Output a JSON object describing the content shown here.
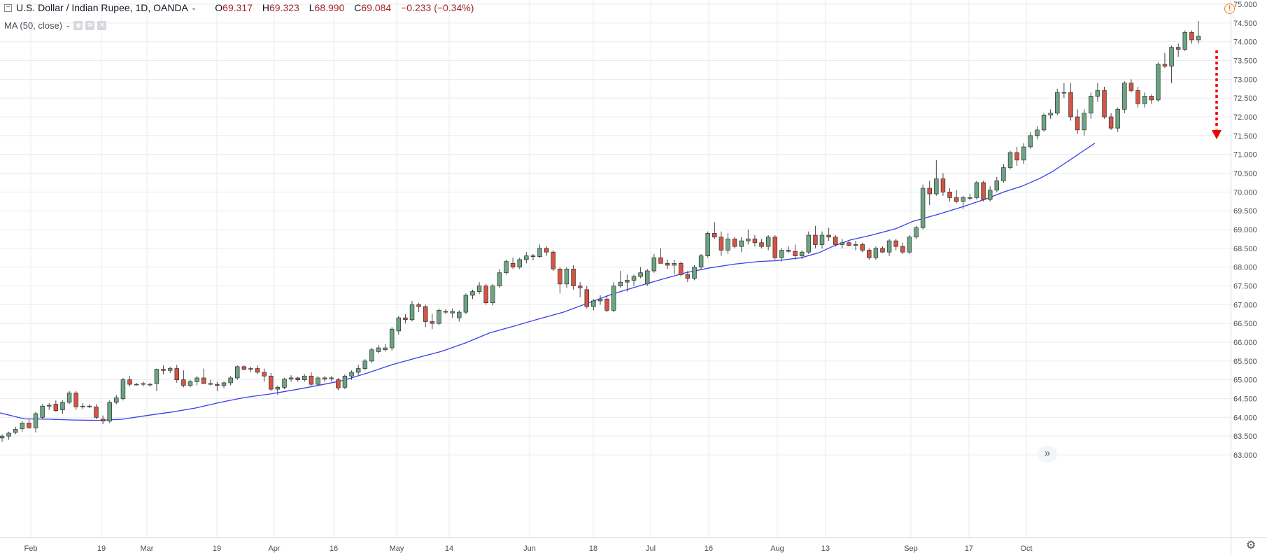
{
  "legend": {
    "symbol": "U.S. Dollar / Indian Rupee, 1D, OANDA",
    "open_label": "O",
    "open": "69.317",
    "high_label": "H",
    "high": "69.323",
    "low_label": "L",
    "low": "68.990",
    "close_label": "C",
    "close": "69.084",
    "change": "−0.233 (−0.34%)",
    "indicator": "MA (50, close)"
  },
  "icons": {
    "collapse": "collapse-square-icon",
    "dropdown": "chevron-down-icon",
    "eye": "eye-icon",
    "settings": "gear-icon",
    "close": "close-icon",
    "warning": "warning-circle-icon",
    "scroll": "double-chevron-right-icon",
    "chart_settings": "gear-icon"
  },
  "colors": {
    "up": "#6ba583",
    "down": "#d75442",
    "ma": "#3a3ee8",
    "arrow": "#f20000",
    "grid": "#e9ebef"
  },
  "chart_data": {
    "type": "candlestick",
    "title": "U.S. Dollar / Indian Rupee, 1D, OANDA",
    "y_ticks": [
      "75.000",
      "74.500",
      "74.000",
      "73.500",
      "73.000",
      "72.500",
      "72.000",
      "71.500",
      "71.000",
      "70.500",
      "70.000",
      "69.500",
      "69.000",
      "68.500",
      "68.000",
      "67.500",
      "67.000",
      "66.500",
      "66.000",
      "65.500",
      "65.000",
      "64.500",
      "64.000",
      "63.500",
      "63.000"
    ],
    "ylim": [
      62.9,
      75.05
    ],
    "x_ticks": [
      "Feb",
      "19",
      "Mar",
      "19",
      "Apr",
      "16",
      "May",
      "14",
      "Jun",
      "18",
      "Jul",
      "16",
      "Aug",
      "13",
      "Sep",
      "17",
      "Oct"
    ],
    "grid": true,
    "candles": [
      [
        63.45,
        63.55,
        63.35,
        63.5
      ],
      [
        63.5,
        63.62,
        63.4,
        63.58
      ],
      [
        63.6,
        63.75,
        63.55,
        63.68
      ],
      [
        63.7,
        63.9,
        63.62,
        63.85
      ],
      [
        63.85,
        63.95,
        63.7,
        63.72
      ],
      [
        63.72,
        64.15,
        63.6,
        64.1
      ],
      [
        64.0,
        64.35,
        63.95,
        64.3
      ],
      [
        64.3,
        64.38,
        64.2,
        64.32
      ],
      [
        64.35,
        64.45,
        64.15,
        64.18
      ],
      [
        64.2,
        64.45,
        64.1,
        64.4
      ],
      [
        64.4,
        64.7,
        64.35,
        64.65
      ],
      [
        64.65,
        64.7,
        64.2,
        64.28
      ],
      [
        64.28,
        64.38,
        64.22,
        64.3
      ],
      [
        64.3,
        64.35,
        64.25,
        64.28
      ],
      [
        64.28,
        64.35,
        63.95,
        64.0
      ],
      [
        63.95,
        64.05,
        63.82,
        63.9
      ],
      [
        63.9,
        64.45,
        63.85,
        64.4
      ],
      [
        64.4,
        64.6,
        64.35,
        64.52
      ],
      [
        64.5,
        65.05,
        64.45,
        65.0
      ],
      [
        65.0,
        65.1,
        64.82,
        64.88
      ],
      [
        64.88,
        64.92,
        64.85,
        64.88
      ],
      [
        64.88,
        64.95,
        64.82,
        64.9
      ],
      [
        64.88,
        64.92,
        64.82,
        64.88
      ],
      [
        64.9,
        65.3,
        64.7,
        65.28
      ],
      [
        65.28,
        65.38,
        65.15,
        65.25
      ],
      [
        65.25,
        65.35,
        65.18,
        65.3
      ],
      [
        65.3,
        65.4,
        64.92,
        65.0
      ],
      [
        65.0,
        65.25,
        64.8,
        64.85
      ],
      [
        64.85,
        65.0,
        64.8,
        64.95
      ],
      [
        64.95,
        65.1,
        64.85,
        65.05
      ],
      [
        65.05,
        65.3,
        64.9,
        64.9
      ],
      [
        64.9,
        65.0,
        64.85,
        64.88
      ],
      [
        64.88,
        64.95,
        64.7,
        64.85
      ],
      [
        64.85,
        64.95,
        64.78,
        64.92
      ],
      [
        64.92,
        65.1,
        64.85,
        65.05
      ],
      [
        65.05,
        65.38,
        65.0,
        65.35
      ],
      [
        65.35,
        65.38,
        65.25,
        65.28
      ],
      [
        65.28,
        65.35,
        65.2,
        65.3
      ],
      [
        65.3,
        65.38,
        65.15,
        65.2
      ],
      [
        65.2,
        65.3,
        64.95,
        65.1
      ],
      [
        65.1,
        65.18,
        64.7,
        64.75
      ],
      [
        64.75,
        64.85,
        64.6,
        64.8
      ],
      [
        64.8,
        65.05,
        64.75,
        65.02
      ],
      [
        65.02,
        65.12,
        64.95,
        65.05
      ],
      [
        65.05,
        65.08,
        64.95,
        65.0
      ],
      [
        65.0,
        65.15,
        64.95,
        65.1
      ],
      [
        65.1,
        65.2,
        64.85,
        64.88
      ],
      [
        64.88,
        65.1,
        64.85,
        65.05
      ],
      [
        65.05,
        65.1,
        64.95,
        65.02
      ],
      [
        65.05,
        65.1,
        64.95,
        65.05
      ],
      [
        65.0,
        65.05,
        64.72,
        64.78
      ],
      [
        64.8,
        65.15,
        64.75,
        65.1
      ],
      [
        65.1,
        65.25,
        65.0,
        65.2
      ],
      [
        65.2,
        65.4,
        65.12,
        65.3
      ],
      [
        65.3,
        65.55,
        65.25,
        65.5
      ],
      [
        65.5,
        65.85,
        65.45,
        65.8
      ],
      [
        65.75,
        65.92,
        65.7,
        65.85
      ],
      [
        65.8,
        65.95,
        65.75,
        65.85
      ],
      [
        65.85,
        66.4,
        65.78,
        66.35
      ],
      [
        66.3,
        66.7,
        66.2,
        66.65
      ],
      [
        66.65,
        66.75,
        66.5,
        66.6
      ],
      [
        66.6,
        67.1,
        66.55,
        67.0
      ],
      [
        67.0,
        67.05,
        66.8,
        66.95
      ],
      [
        66.95,
        67.0,
        66.4,
        66.55
      ],
      [
        66.55,
        66.75,
        66.35,
        66.5
      ],
      [
        66.5,
        66.9,
        66.45,
        66.85
      ],
      [
        66.82,
        66.88,
        66.75,
        66.8
      ],
      [
        66.78,
        66.9,
        66.65,
        66.82
      ],
      [
        66.65,
        66.85,
        66.55,
        66.8
      ],
      [
        66.8,
        67.3,
        66.75,
        67.25
      ],
      [
        67.25,
        67.4,
        67.15,
        67.35
      ],
      [
        67.35,
        67.6,
        67.28,
        67.5
      ],
      [
        67.5,
        67.55,
        67.0,
        67.05
      ],
      [
        67.05,
        67.55,
        66.98,
        67.5
      ],
      [
        67.5,
        67.95,
        67.45,
        67.85
      ],
      [
        67.85,
        68.2,
        67.8,
        68.15
      ],
      [
        68.1,
        68.25,
        67.95,
        68.0
      ],
      [
        68.0,
        68.25,
        67.95,
        68.2
      ],
      [
        68.2,
        68.4,
        68.1,
        68.3
      ],
      [
        68.3,
        68.35,
        68.18,
        68.28
      ],
      [
        68.28,
        68.6,
        68.25,
        68.5
      ],
      [
        68.5,
        68.55,
        68.3,
        68.4
      ],
      [
        68.4,
        68.45,
        67.9,
        67.95
      ],
      [
        67.95,
        68.0,
        67.3,
        67.55
      ],
      [
        67.55,
        68.0,
        67.45,
        67.95
      ],
      [
        67.95,
        68.05,
        67.4,
        67.5
      ],
      [
        67.5,
        67.6,
        67.2,
        67.45
      ],
      [
        67.4,
        67.5,
        66.9,
        66.95
      ],
      [
        66.95,
        67.15,
        66.85,
        67.1
      ],
      [
        67.1,
        67.25,
        67.0,
        67.15
      ],
      [
        67.15,
        67.25,
        66.8,
        66.85
      ],
      [
        66.85,
        67.6,
        66.8,
        67.5
      ],
      [
        67.5,
        67.9,
        67.45,
        67.6
      ],
      [
        67.6,
        67.8,
        67.35,
        67.65
      ],
      [
        67.65,
        67.8,
        67.5,
        67.75
      ],
      [
        67.75,
        68.0,
        67.7,
        67.85
      ],
      [
        67.55,
        67.95,
        67.5,
        67.9
      ],
      [
        67.9,
        68.35,
        67.85,
        68.25
      ],
      [
        68.25,
        68.5,
        68.15,
        68.1
      ],
      [
        68.1,
        68.2,
        67.95,
        68.05
      ],
      [
        68.05,
        68.2,
        67.8,
        68.1
      ],
      [
        68.1,
        68.15,
        67.75,
        67.8
      ],
      [
        67.8,
        67.9,
        67.6,
        67.7
      ],
      [
        67.7,
        68.05,
        67.65,
        68.0
      ],
      [
        68.0,
        68.35,
        67.95,
        68.3
      ],
      [
        68.3,
        68.95,
        68.25,
        68.9
      ],
      [
        68.9,
        69.2,
        68.75,
        68.8
      ],
      [
        68.8,
        68.95,
        68.3,
        68.45
      ],
      [
        68.45,
        68.9,
        68.35,
        68.75
      ],
      [
        68.75,
        68.8,
        68.5,
        68.55
      ],
      [
        68.55,
        68.8,
        68.4,
        68.7
      ],
      [
        68.7,
        69.0,
        68.6,
        68.75
      ],
      [
        68.75,
        68.85,
        68.55,
        68.65
      ],
      [
        68.65,
        68.75,
        68.5,
        68.55
      ],
      [
        68.55,
        68.85,
        68.45,
        68.8
      ],
      [
        68.8,
        68.85,
        68.2,
        68.25
      ],
      [
        68.25,
        68.5,
        68.15,
        68.45
      ],
      [
        68.45,
        68.55,
        68.38,
        68.42
      ],
      [
        68.42,
        68.6,
        68.2,
        68.3
      ],
      [
        68.3,
        68.45,
        68.22,
        68.4
      ],
      [
        68.4,
        68.95,
        68.35,
        68.85
      ],
      [
        68.85,
        69.1,
        68.5,
        68.6
      ],
      [
        68.6,
        68.95,
        68.5,
        68.85
      ],
      [
        68.85,
        69.05,
        68.7,
        68.8
      ],
      [
        68.8,
        68.85,
        68.55,
        68.6
      ],
      [
        68.6,
        68.75,
        68.5,
        68.65
      ],
      [
        68.65,
        68.7,
        68.55,
        68.58
      ],
      [
        68.58,
        68.7,
        68.45,
        68.6
      ],
      [
        68.6,
        68.65,
        68.4,
        68.45
      ],
      [
        68.45,
        68.5,
        68.2,
        68.25
      ],
      [
        68.25,
        68.55,
        68.2,
        68.5
      ],
      [
        68.5,
        68.55,
        68.38,
        68.4
      ],
      [
        68.4,
        68.75,
        68.3,
        68.7
      ],
      [
        68.7,
        68.75,
        68.45,
        68.55
      ],
      [
        68.55,
        68.65,
        68.35,
        68.4
      ],
      [
        68.4,
        68.85,
        68.35,
        68.8
      ],
      [
        68.8,
        69.1,
        68.75,
        69.05
      ],
      [
        69.05,
        70.2,
        69.0,
        70.1
      ],
      [
        70.1,
        70.3,
        69.65,
        69.95
      ],
      [
        69.95,
        70.85,
        69.9,
        70.35
      ],
      [
        70.35,
        70.5,
        69.9,
        70.0
      ],
      [
        70.0,
        70.1,
        69.75,
        69.85
      ],
      [
        69.85,
        70.05,
        69.7,
        69.75
      ],
      [
        69.75,
        69.9,
        69.55,
        69.85
      ],
      [
        69.85,
        69.95,
        69.78,
        69.85
      ],
      [
        69.85,
        70.3,
        69.8,
        70.25
      ],
      [
        70.25,
        70.3,
        69.75,
        69.8
      ],
      [
        69.8,
        70.15,
        69.75,
        70.05
      ],
      [
        70.05,
        70.4,
        70.0,
        70.3
      ],
      [
        70.3,
        70.75,
        70.25,
        70.65
      ],
      [
        70.65,
        71.1,
        70.6,
        71.05
      ],
      [
        71.05,
        71.2,
        70.7,
        70.85
      ],
      [
        70.85,
        71.3,
        70.75,
        71.2
      ],
      [
        71.2,
        71.6,
        71.15,
        71.5
      ],
      [
        71.5,
        71.75,
        71.4,
        71.65
      ],
      [
        71.65,
        72.1,
        71.6,
        72.05
      ],
      [
        72.05,
        72.2,
        71.95,
        72.1
      ],
      [
        72.1,
        72.75,
        72.05,
        72.65
      ],
      [
        72.65,
        72.9,
        72.5,
        72.65
      ],
      [
        72.65,
        72.9,
        71.9,
        72.0
      ],
      [
        72.0,
        72.2,
        71.55,
        71.65
      ],
      [
        71.65,
        72.2,
        71.5,
        72.1
      ],
      [
        72.1,
        72.65,
        71.95,
        72.55
      ],
      [
        72.55,
        72.9,
        72.4,
        72.7
      ],
      [
        72.7,
        72.8,
        71.95,
        72.0
      ],
      [
        72.0,
        72.1,
        71.65,
        71.7
      ],
      [
        71.7,
        72.25,
        71.6,
        72.2
      ],
      [
        72.2,
        72.95,
        72.1,
        72.9
      ],
      [
        72.9,
        73.0,
        72.65,
        72.7
      ],
      [
        72.7,
        72.8,
        72.25,
        72.35
      ],
      [
        72.35,
        72.65,
        72.25,
        72.55
      ],
      [
        72.55,
        72.6,
        72.35,
        72.45
      ],
      [
        72.45,
        73.45,
        72.4,
        73.4
      ],
      [
        73.4,
        73.7,
        73.3,
        73.35
      ],
      [
        73.35,
        73.9,
        72.9,
        73.85
      ],
      [
        73.85,
        73.95,
        73.6,
        73.8
      ],
      [
        73.8,
        74.3,
        73.75,
        74.25
      ],
      [
        74.25,
        74.3,
        73.95,
        74.05
      ],
      [
        74.05,
        74.55,
        73.95,
        74.15
      ]
    ],
    "ma_50": [
      [
        0,
        64.12
      ],
      [
        35,
        63.96
      ],
      [
        70,
        63.95
      ],
      [
        105,
        63.93
      ],
      [
        140,
        63.92
      ],
      [
        175,
        63.95
      ],
      [
        210,
        64.05
      ],
      [
        245,
        64.14
      ],
      [
        280,
        64.25
      ],
      [
        315,
        64.4
      ],
      [
        350,
        64.53
      ],
      [
        385,
        64.62
      ],
      [
        420,
        64.73
      ],
      [
        455,
        64.85
      ],
      [
        490,
        64.98
      ],
      [
        525,
        65.18
      ],
      [
        560,
        65.4
      ],
      [
        595,
        65.58
      ],
      [
        630,
        65.75
      ],
      [
        665,
        65.98
      ],
      [
        700,
        66.25
      ],
      [
        735,
        66.43
      ],
      [
        770,
        66.62
      ],
      [
        805,
        66.8
      ],
      [
        840,
        67.04
      ],
      [
        875,
        67.28
      ],
      [
        910,
        67.48
      ],
      [
        945,
        67.67
      ],
      [
        980,
        67.85
      ],
      [
        1015,
        67.98
      ],
      [
        1050,
        68.08
      ],
      [
        1085,
        68.15
      ],
      [
        1110,
        68.17
      ],
      [
        1145,
        68.25
      ],
      [
        1170,
        68.38
      ],
      [
        1190,
        68.55
      ],
      [
        1215,
        68.72
      ],
      [
        1245,
        68.85
      ],
      [
        1280,
        69.02
      ],
      [
        1305,
        69.22
      ],
      [
        1340,
        69.4
      ],
      [
        1375,
        69.6
      ],
      [
        1410,
        69.82
      ],
      [
        1435,
        70.0
      ],
      [
        1460,
        70.15
      ],
      [
        1485,
        70.35
      ],
      [
        1505,
        70.55
      ],
      [
        1525,
        70.8
      ],
      [
        1545,
        71.05
      ],
      [
        1565,
        71.3
      ]
    ],
    "annotation": "downward-arrow"
  }
}
